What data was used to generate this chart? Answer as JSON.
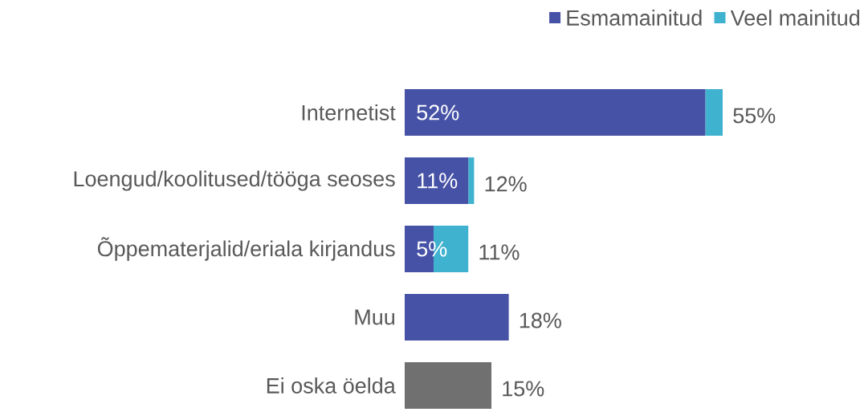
{
  "chart_data": {
    "type": "bar",
    "orientation": "horizontal",
    "stacked": true,
    "legend": "top right",
    "categories": [
      "Internetist",
      "Loengud/koolitused/tööga seoses",
      "Õppematerjalid/eriala kirjandus",
      "Muu",
      "Ei oska öelda"
    ],
    "series": [
      {
        "name": "Esmamainitud",
        "color": "#4652a6",
        "colors": [
          "#4652a6",
          "#4652a6",
          "#4652a6",
          "#4652a6",
          "#707070"
        ],
        "values": [
          52,
          11,
          5,
          18,
          15
        ],
        "value_labels": [
          "52%",
          "11%",
          "5%",
          null,
          null
        ]
      },
      {
        "name": "Veel mainitud",
        "color": "#3fb2cf",
        "values": [
          3,
          1,
          6,
          null,
          null
        ]
      }
    ],
    "totals": [
      "55%",
      "12%",
      "11%",
      "18%",
      "15%"
    ]
  }
}
